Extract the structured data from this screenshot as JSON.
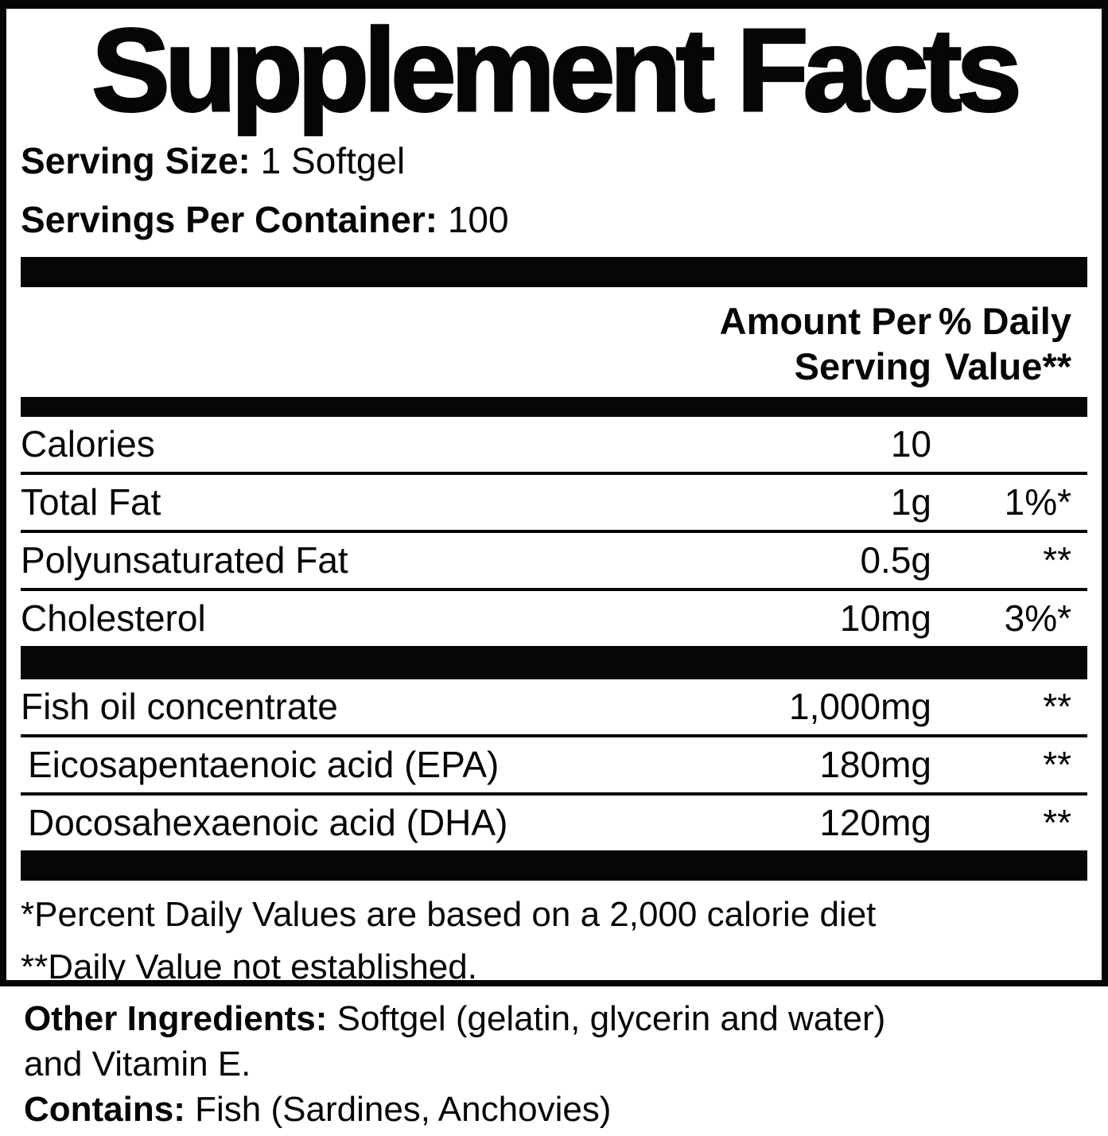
{
  "colors": {
    "ink": "#060606",
    "paper": "#ffffff"
  },
  "title": "Supplement Facts",
  "serving": {
    "size_label": "Serving Size:",
    "size_value": "1 Softgel",
    "per_container_label": "Servings Per Container:",
    "per_container_value": "100"
  },
  "columns": {
    "amount_line1": "Amount Per",
    "amount_line2": "Serving",
    "dv_line1": "% Daily",
    "dv_line2": "Value**"
  },
  "rows": [
    {
      "label": "Calories",
      "amount": "10",
      "dv": ""
    },
    {
      "label": "Total Fat",
      "amount": "1g",
      "dv": "1%*"
    },
    {
      "label": "Polyunsaturated Fat",
      "amount": "0.5g",
      "dv": "**"
    },
    {
      "label": "Cholesterol",
      "amount": "10mg",
      "dv": "3%*"
    }
  ],
  "rows2": [
    {
      "label": "Fish oil concentrate",
      "amount": "1,000mg",
      "dv": "**"
    },
    {
      "label": "Eicosapentaenoic acid (EPA)",
      "amount": "180mg",
      "dv": "**",
      "indent": true
    },
    {
      "label": "Docosahexaenoic acid (DHA)",
      "amount": "120mg",
      "dv": "**",
      "indent": true
    }
  ],
  "footnotes": [
    "*Percent Daily Values are based on a 2,000 calorie diet",
    "**Daily Value not established."
  ],
  "other_ingredients": {
    "label": "Other Ingredients:",
    "value": "Softgel (gelatin, glycerin and water) and Vitamin E."
  },
  "contains": {
    "label": "Contains:",
    "value": "Fish (Sardines, Anchovies)"
  }
}
